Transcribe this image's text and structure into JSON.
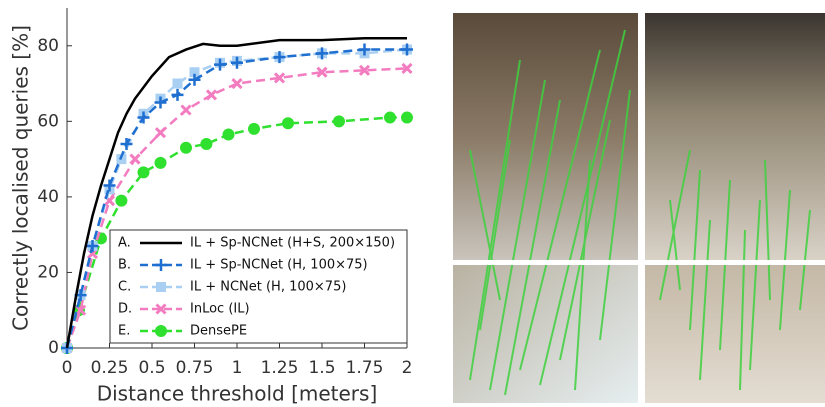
{
  "chart_data": {
    "type": "line",
    "xlabel": "Distance threshold [meters]",
    "ylabel": "Correctly localised queries [%]",
    "xlim": [
      0,
      2
    ],
    "ylim": [
      0,
      90
    ],
    "xticks": [
      0,
      0.25,
      0.5,
      0.75,
      1,
      1.25,
      1.5,
      1.75,
      2
    ],
    "yticks": [
      0,
      20,
      40,
      60,
      80
    ],
    "legend": "lower-right",
    "series": [
      {
        "letter": "A.",
        "name": "IL + Sp-NCNet (H+S, 200×150)",
        "color": "#000000",
        "marker": "none",
        "dash": false,
        "x": [
          0,
          0.05,
          0.1,
          0.15,
          0.2,
          0.25,
          0.3,
          0.35,
          0.4,
          0.5,
          0.6,
          0.7,
          0.8,
          0.9,
          1.0,
          1.25,
          1.5,
          1.75,
          2
        ],
        "values": [
          0,
          13,
          25,
          35,
          43,
          50,
          57,
          62,
          66,
          72,
          77,
          79,
          80.5,
          80,
          80,
          81.5,
          81.5,
          82,
          82
        ]
      },
      {
        "letter": "B.",
        "name": "IL + Sp-NCNet (H, 100×75)",
        "color": "#1f6fd0",
        "marker": "plus",
        "dash": true,
        "x": [
          0,
          0.08,
          0.15,
          0.25,
          0.35,
          0.45,
          0.55,
          0.65,
          0.75,
          0.9,
          1.0,
          1.25,
          1.5,
          1.75,
          2
        ],
        "values": [
          0,
          14,
          27,
          43,
          54,
          61,
          65,
          67,
          71,
          75,
          75.5,
          77,
          78,
          79,
          79
        ]
      },
      {
        "letter": "C.",
        "name": "IL + NCNet (H, 100×75)",
        "color": "#a9cff2",
        "marker": "square",
        "dash": true,
        "x": [
          0,
          0.08,
          0.15,
          0.25,
          0.32,
          0.45,
          0.55,
          0.65,
          0.75,
          0.9,
          1.0,
          1.25,
          1.5,
          1.75,
          2
        ],
        "values": [
          0,
          14,
          27,
          42,
          50,
          62,
          66,
          70,
          73,
          75.5,
          76,
          77,
          78,
          78,
          79
        ]
      },
      {
        "letter": "D.",
        "name": "InLoc (IL)",
        "color": "#f27cbf",
        "marker": "cross",
        "dash": true,
        "x": [
          0,
          0.08,
          0.15,
          0.25,
          0.4,
          0.55,
          0.7,
          0.85,
          1.0,
          1.25,
          1.5,
          1.75,
          2
        ],
        "values": [
          0,
          10,
          25,
          39,
          50,
          57,
          63,
          67,
          70,
          71.5,
          73,
          73.5,
          74
        ]
      },
      {
        "letter": "E.",
        "name": "DensePE",
        "color": "#2fe02f",
        "marker": "circle",
        "dash": true,
        "x": [
          0,
          0.07,
          0.2,
          0.32,
          0.45,
          0.55,
          0.7,
          0.82,
          0.95,
          1.1,
          1.3,
          1.6,
          1.9,
          2
        ],
        "values": [
          0,
          10,
          29,
          39,
          46.5,
          49,
          53,
          54,
          56.5,
          58,
          59.5,
          60,
          61,
          61
        ]
      }
    ]
  }
}
